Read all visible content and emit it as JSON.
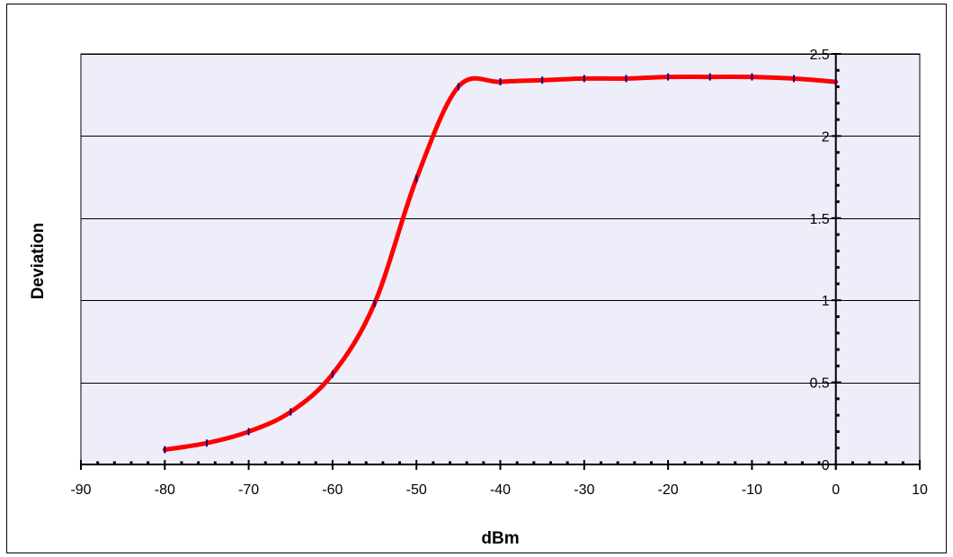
{
  "chart_data": {
    "type": "line",
    "title": "",
    "xlabel": "dBm",
    "ylabel": "Deviation",
    "xlim": [
      -90,
      10
    ],
    "ylim": [
      0,
      2.5
    ],
    "grid": "horizontal",
    "legend": "none",
    "x_ticks": [
      "-90",
      "-80",
      "-70",
      "-60",
      "-50",
      "-40",
      "-30",
      "-20",
      "-10",
      "0",
      "10"
    ],
    "y_ticks": [
      "0",
      "0.5",
      "1",
      "1.5",
      "2",
      "2.5"
    ],
    "series": [
      {
        "color": "#ff0000",
        "marker_color": "#000080",
        "x": [
          -80,
          -75,
          -70,
          -65,
          -60,
          -55,
          -50,
          -45,
          -40,
          -35,
          -30,
          -25,
          -20,
          -15,
          -10,
          -5,
          0
        ],
        "y": [
          0.09,
          0.13,
          0.2,
          0.32,
          0.55,
          0.98,
          1.74,
          2.3,
          2.33,
          2.34,
          2.35,
          2.35,
          2.36,
          2.36,
          2.36,
          2.35,
          2.33
        ]
      }
    ],
    "colors": {
      "plot_background": "#eeeefb",
      "gridline": "#000000",
      "line": "#ff0000",
      "marker": "#000080"
    }
  }
}
